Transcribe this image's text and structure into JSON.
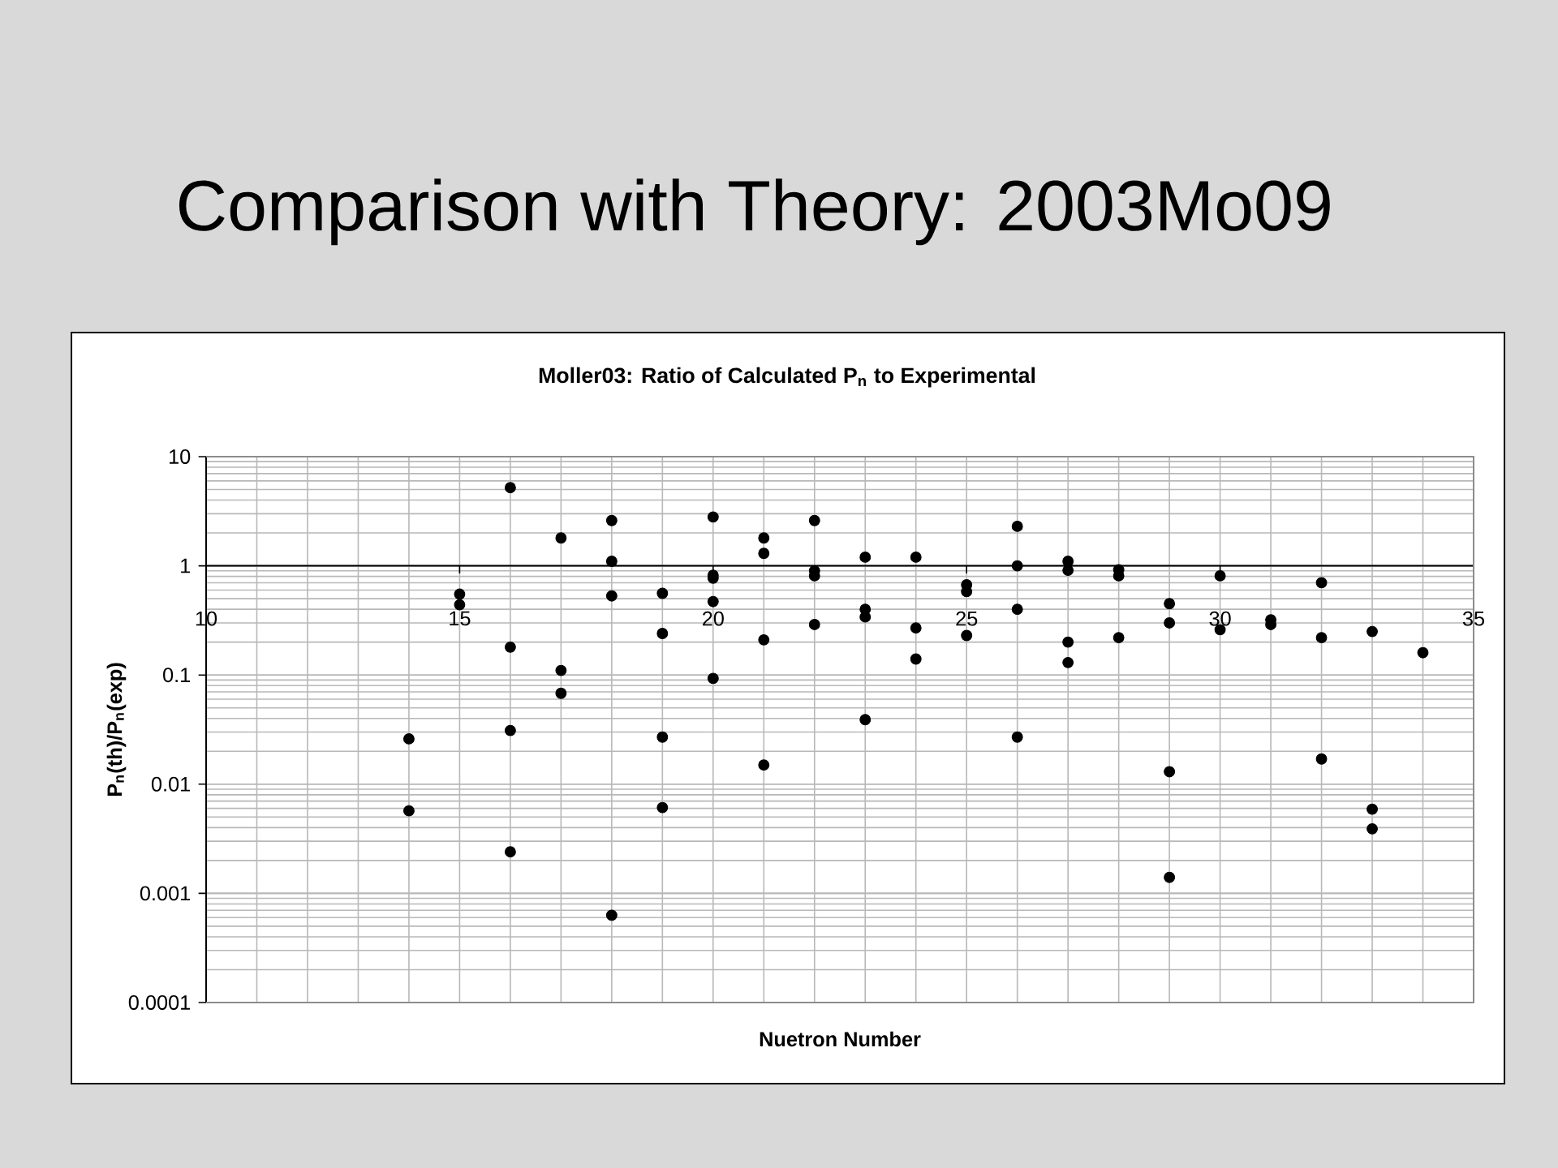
{
  "chart_data": {
    "type": "scatter",
    "title": "Comparison with Theory: 2003Mo09",
    "subtitle": "Moller03: Ratio of Calculated P$_{n}$ to Experimental",
    "xlabel": "Nuetron Number",
    "ylabel": "P$_{n}$(th)/P$_{n}$(exp)",
    "x": [
      14,
      14,
      15,
      15,
      16,
      16,
      16,
      16,
      17,
      17,
      17,
      18,
      18,
      18,
      18,
      19,
      19,
      19,
      19,
      20,
      20,
      20,
      20,
      20,
      21,
      21,
      21,
      21,
      22,
      22,
      22,
      22,
      23,
      23,
      23,
      23,
      24,
      24,
      24,
      25,
      25,
      25,
      26,
      26,
      26,
      26,
      27,
      27,
      27,
      27,
      28,
      28,
      28,
      29,
      29,
      29,
      29,
      30,
      30,
      31,
      31,
      32,
      32,
      32,
      33,
      33,
      33,
      34
    ],
    "values": [
      0.026,
      0.0057,
      0.55,
      0.44,
      5.2,
      0.18,
      0.031,
      0.0024,
      1.8,
      0.11,
      0.068,
      2.6,
      1.1,
      0.53,
      0.00063,
      0.56,
      0.24,
      0.027,
      0.0061,
      2.8,
      0.82,
      0.77,
      0.47,
      0.093,
      1.8,
      1.3,
      0.21,
      0.015,
      2.6,
      0.9,
      0.81,
      0.29,
      1.2,
      0.4,
      0.34,
      0.039,
      1.2,
      0.27,
      0.14,
      0.67,
      0.58,
      0.23,
      2.3,
      1.0,
      0.4,
      0.027,
      1.1,
      0.91,
      0.2,
      0.13,
      0.92,
      0.81,
      0.22,
      0.45,
      0.3,
      0.013,
      0.0014,
      0.81,
      0.26,
      0.32,
      0.29,
      0.7,
      0.22,
      0.017,
      0.25,
      0.0059,
      0.0039,
      0.16
    ],
    "color": "#000000",
    "marker": "circle",
    "log": "y",
    "grid": true,
    "xlim": [
      10,
      35
    ],
    "xticks": [
      10,
      15,
      20,
      25,
      30,
      35
    ],
    "ylim": [
      0.0001,
      10
    ],
    "yticks": [
      0.0001,
      0.001,
      0.01,
      0.1,
      1,
      10
    ]
  }
}
